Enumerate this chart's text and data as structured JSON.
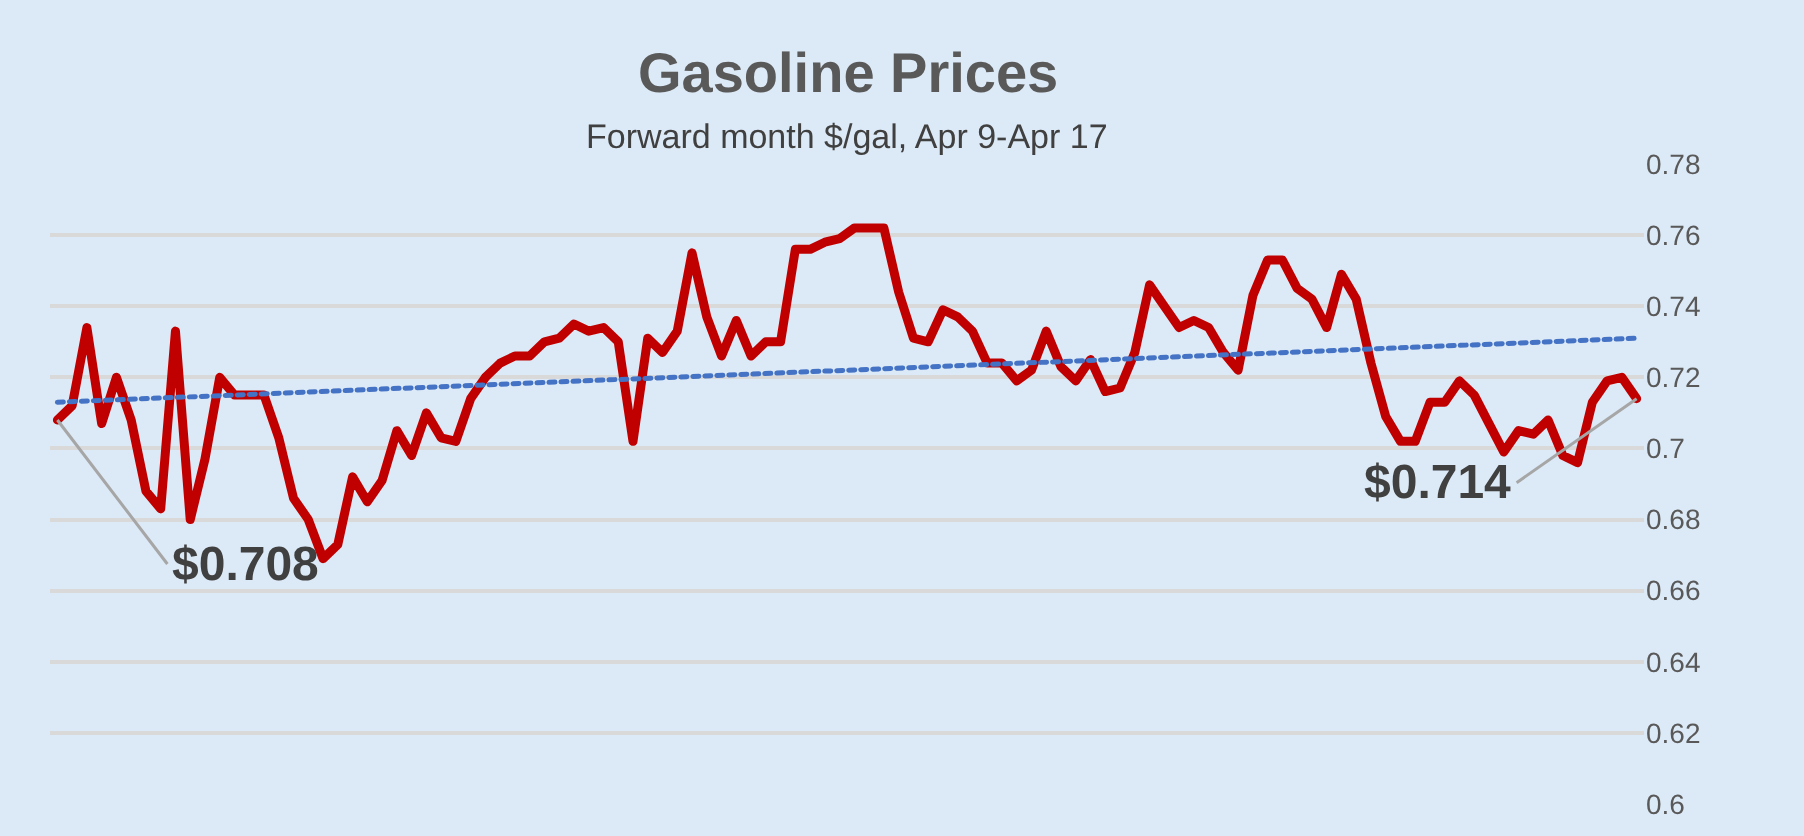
{
  "chart_data": {
    "type": "line",
    "title": "Gasoline Prices",
    "subtitle": "Forward month $/gal, Apr 9-Apr 17",
    "categories": [
      null,
      null,
      null,
      null,
      null,
      null,
      null,
      null,
      null,
      null,
      null,
      null,
      null,
      null,
      null,
      null,
      null,
      null,
      null,
      null,
      null,
      null,
      null,
      null,
      null,
      null,
      null,
      null,
      null,
      null,
      null,
      null,
      null,
      null,
      null,
      null,
      null,
      null,
      null,
      null,
      null,
      null,
      null,
      null,
      null,
      null,
      null,
      null,
      null,
      null,
      null,
      null,
      null,
      null,
      null,
      null,
      null,
      null,
      null,
      null,
      null,
      null,
      null,
      null,
      null,
      null,
      null,
      null,
      null,
      null,
      null,
      null,
      null,
      null,
      null,
      null,
      null,
      null,
      null,
      null,
      null,
      null,
      null,
      null,
      null,
      null,
      null,
      null,
      null,
      null,
      null,
      null,
      null,
      null,
      null,
      null,
      null,
      null,
      null,
      null,
      null,
      null,
      null,
      null,
      null,
      null,
      null,
      null
    ],
    "series": [
      {
        "color": "#c00000",
        "values": [
          0.708,
          0.712,
          0.734,
          0.707,
          0.72,
          0.708,
          0.688,
          0.683,
          0.733,
          0.68,
          0.697,
          0.72,
          0.715,
          0.715,
          0.715,
          0.703,
          0.686,
          0.68,
          0.669,
          0.673,
          0.692,
          0.685,
          0.691,
          0.705,
          0.698,
          0.71,
          0.703,
          0.702,
          0.714,
          0.72,
          0.724,
          0.726,
          0.726,
          0.73,
          0.731,
          0.735,
          0.733,
          0.734,
          0.73,
          0.702,
          0.731,
          0.727,
          0.733,
          0.755,
          0.737,
          0.726,
          0.736,
          0.726,
          0.73,
          0.73,
          0.756,
          0.756,
          0.758,
          0.759,
          0.762,
          0.762,
          0.762,
          0.744,
          0.731,
          0.73,
          0.739,
          0.737,
          0.733,
          0.724,
          0.724,
          0.719,
          0.722,
          0.733,
          0.723,
          0.719,
          0.725,
          0.716,
          0.717,
          0.727,
          0.746,
          0.74,
          0.734,
          0.736,
          0.734,
          0.727,
          0.722,
          0.743,
          0.753,
          0.753,
          0.745,
          0.742,
          0.734,
          0.749,
          0.742,
          0.724,
          0.709,
          0.702,
          0.702,
          0.713,
          0.713,
          0.719,
          0.715,
          0.707,
          0.699,
          0.705,
          0.704,
          0.708,
          0.698,
          0.696,
          0.713,
          0.719,
          0.72,
          0.714
        ],
        "value_labels": [
          "$0.708",
          null,
          null,
          null,
          null,
          null,
          null,
          null,
          null,
          null,
          null,
          null,
          null,
          null,
          null,
          null,
          null,
          null,
          null,
          null,
          null,
          null,
          null,
          null,
          null,
          null,
          null,
          null,
          null,
          null,
          null,
          null,
          null,
          null,
          null,
          null,
          null,
          null,
          null,
          null,
          null,
          null,
          null,
          null,
          null,
          null,
          null,
          null,
          null,
          null,
          null,
          null,
          null,
          null,
          null,
          null,
          null,
          null,
          null,
          null,
          null,
          null,
          null,
          null,
          null,
          null,
          null,
          null,
          null,
          null,
          null,
          null,
          null,
          null,
          null,
          null,
          null,
          null,
          null,
          null,
          null,
          null,
          null,
          null,
          null,
          null,
          null,
          null,
          null,
          null,
          null,
          null,
          null,
          null,
          null,
          null,
          null,
          null,
          null,
          null,
          null,
          null,
          null,
          null,
          null,
          null,
          null,
          "$0.714"
        ]
      },
      {
        "color": "#4472c4",
        "line_style": "dotted",
        "values": [
          0.713,
          null,
          null,
          null,
          null,
          null,
          null,
          null,
          null,
          null,
          null,
          null,
          null,
          null,
          null,
          null,
          null,
          null,
          null,
          null,
          null,
          null,
          null,
          null,
          null,
          null,
          null,
          null,
          null,
          null,
          null,
          null,
          null,
          null,
          null,
          null,
          null,
          null,
          null,
          null,
          null,
          null,
          null,
          null,
          null,
          null,
          null,
          null,
          null,
          null,
          null,
          null,
          null,
          null,
          null,
          null,
          null,
          null,
          null,
          null,
          null,
          null,
          null,
          null,
          null,
          null,
          null,
          null,
          null,
          null,
          null,
          null,
          null,
          null,
          null,
          null,
          null,
          null,
          null,
          null,
          null,
          null,
          null,
          null,
          null,
          null,
          null,
          null,
          null,
          null,
          null,
          null,
          null,
          null,
          null,
          null,
          null,
          null,
          null,
          null,
          null,
          null,
          null,
          null,
          null,
          null,
          null,
          0.731
        ]
      }
    ],
    "ylim": [
      0.6,
      0.78
    ],
    "yticks": [
      0.6,
      0.62,
      0.64,
      0.66,
      0.68,
      0.7,
      0.72,
      0.74,
      0.76,
      0.78
    ],
    "grid": "y",
    "marker": "none",
    "tick_labels": "y"
  }
}
